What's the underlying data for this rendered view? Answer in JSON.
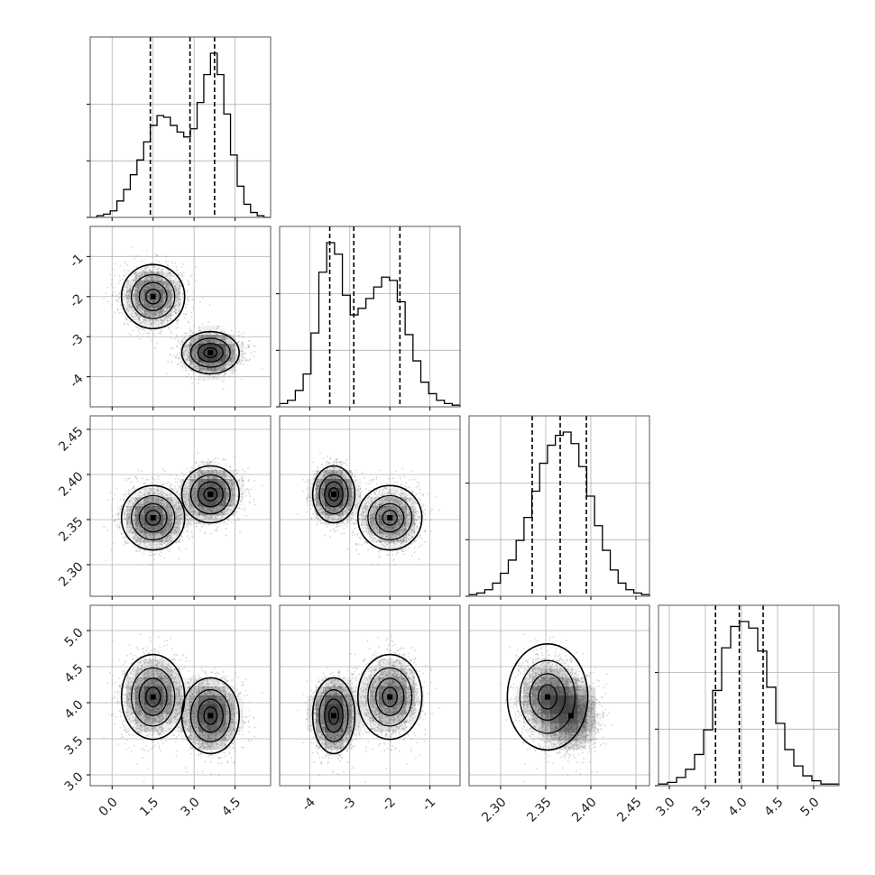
{
  "chart_data": {
    "type": "corner",
    "grid": true,
    "colors": {
      "line": "#000000",
      "grid": "#b0b0b0",
      "points": "#8a8a8a",
      "fill": "#3c3c3c"
    },
    "params": [
      {
        "range": [
          -0.8,
          5.8
        ],
        "ticks": [
          "0.0",
          "1.5",
          "3.0",
          "4.5"
        ],
        "tick_values": [
          0.0,
          1.5,
          3.0,
          4.5
        ],
        "quantiles": [
          1.4,
          2.85,
          3.75
        ],
        "hist": [
          0.0,
          0.01,
          0.02,
          0.04,
          0.1,
          0.17,
          0.26,
          0.35,
          0.46,
          0.56,
          0.62,
          0.61,
          0.56,
          0.52,
          0.49,
          0.54,
          0.7,
          0.87,
          1.0,
          0.87,
          0.63,
          0.38,
          0.19,
          0.08,
          0.03,
          0.01,
          0.0
        ],
        "modes": [
          {
            "center": 1.5,
            "sd": 0.55,
            "weight": 0.5
          },
          {
            "center": 3.6,
            "sd": 0.5,
            "weight": 0.5
          }
        ]
      },
      {
        "range": [
          -4.75,
          -0.25
        ],
        "ticks": [
          "-4",
          "-3",
          "-2",
          "-1"
        ],
        "tick_values": [
          -4,
          -3,
          -2,
          -1
        ],
        "quantiles": [
          -3.5,
          -2.9,
          -1.75
        ],
        "hist": [
          0.02,
          0.04,
          0.1,
          0.2,
          0.45,
          0.82,
          1.0,
          0.93,
          0.68,
          0.56,
          0.6,
          0.66,
          0.73,
          0.79,
          0.77,
          0.64,
          0.44,
          0.28,
          0.15,
          0.08,
          0.04,
          0.02,
          0.01
        ],
        "modes": [
          {
            "center": -2.0,
            "sd": 0.38
          },
          {
            "center": -3.4,
            "sd": 0.25
          }
        ]
      },
      {
        "range": [
          2.265,
          2.465
        ],
        "ticks": [
          "2.30",
          "2.35",
          "2.40",
          "2.45"
        ],
        "tick_values": [
          2.3,
          2.35,
          2.4,
          2.45
        ],
        "quantiles": [
          2.335,
          2.366,
          2.395
        ],
        "hist": [
          0.01,
          0.02,
          0.04,
          0.08,
          0.14,
          0.22,
          0.34,
          0.48,
          0.64,
          0.81,
          0.92,
          0.98,
          1.0,
          0.93,
          0.79,
          0.61,
          0.43,
          0.28,
          0.16,
          0.08,
          0.04,
          0.02,
          0.01
        ],
        "modes": [
          {
            "center": 2.352,
            "sd": 0.017
          },
          {
            "center": 2.378,
            "sd": 0.015
          }
        ]
      },
      {
        "range": [
          2.85,
          5.35
        ],
        "ticks": [
          "3.0",
          "3.5",
          "4.0",
          "4.5",
          "5.0"
        ],
        "tick_values": [
          3.0,
          3.5,
          4.0,
          4.5,
          5.0
        ],
        "quantiles": [
          3.64,
          3.97,
          4.3
        ],
        "hist": [
          0.01,
          0.02,
          0.05,
          0.1,
          0.19,
          0.34,
          0.58,
          0.84,
          0.97,
          1.0,
          0.96,
          0.82,
          0.6,
          0.38,
          0.22,
          0.12,
          0.06,
          0.03,
          0.01,
          0.01
        ],
        "modes": [
          {
            "center": 4.08,
            "sd": 0.28
          },
          {
            "center": 3.82,
            "sd": 0.25
          }
        ]
      }
    ]
  }
}
